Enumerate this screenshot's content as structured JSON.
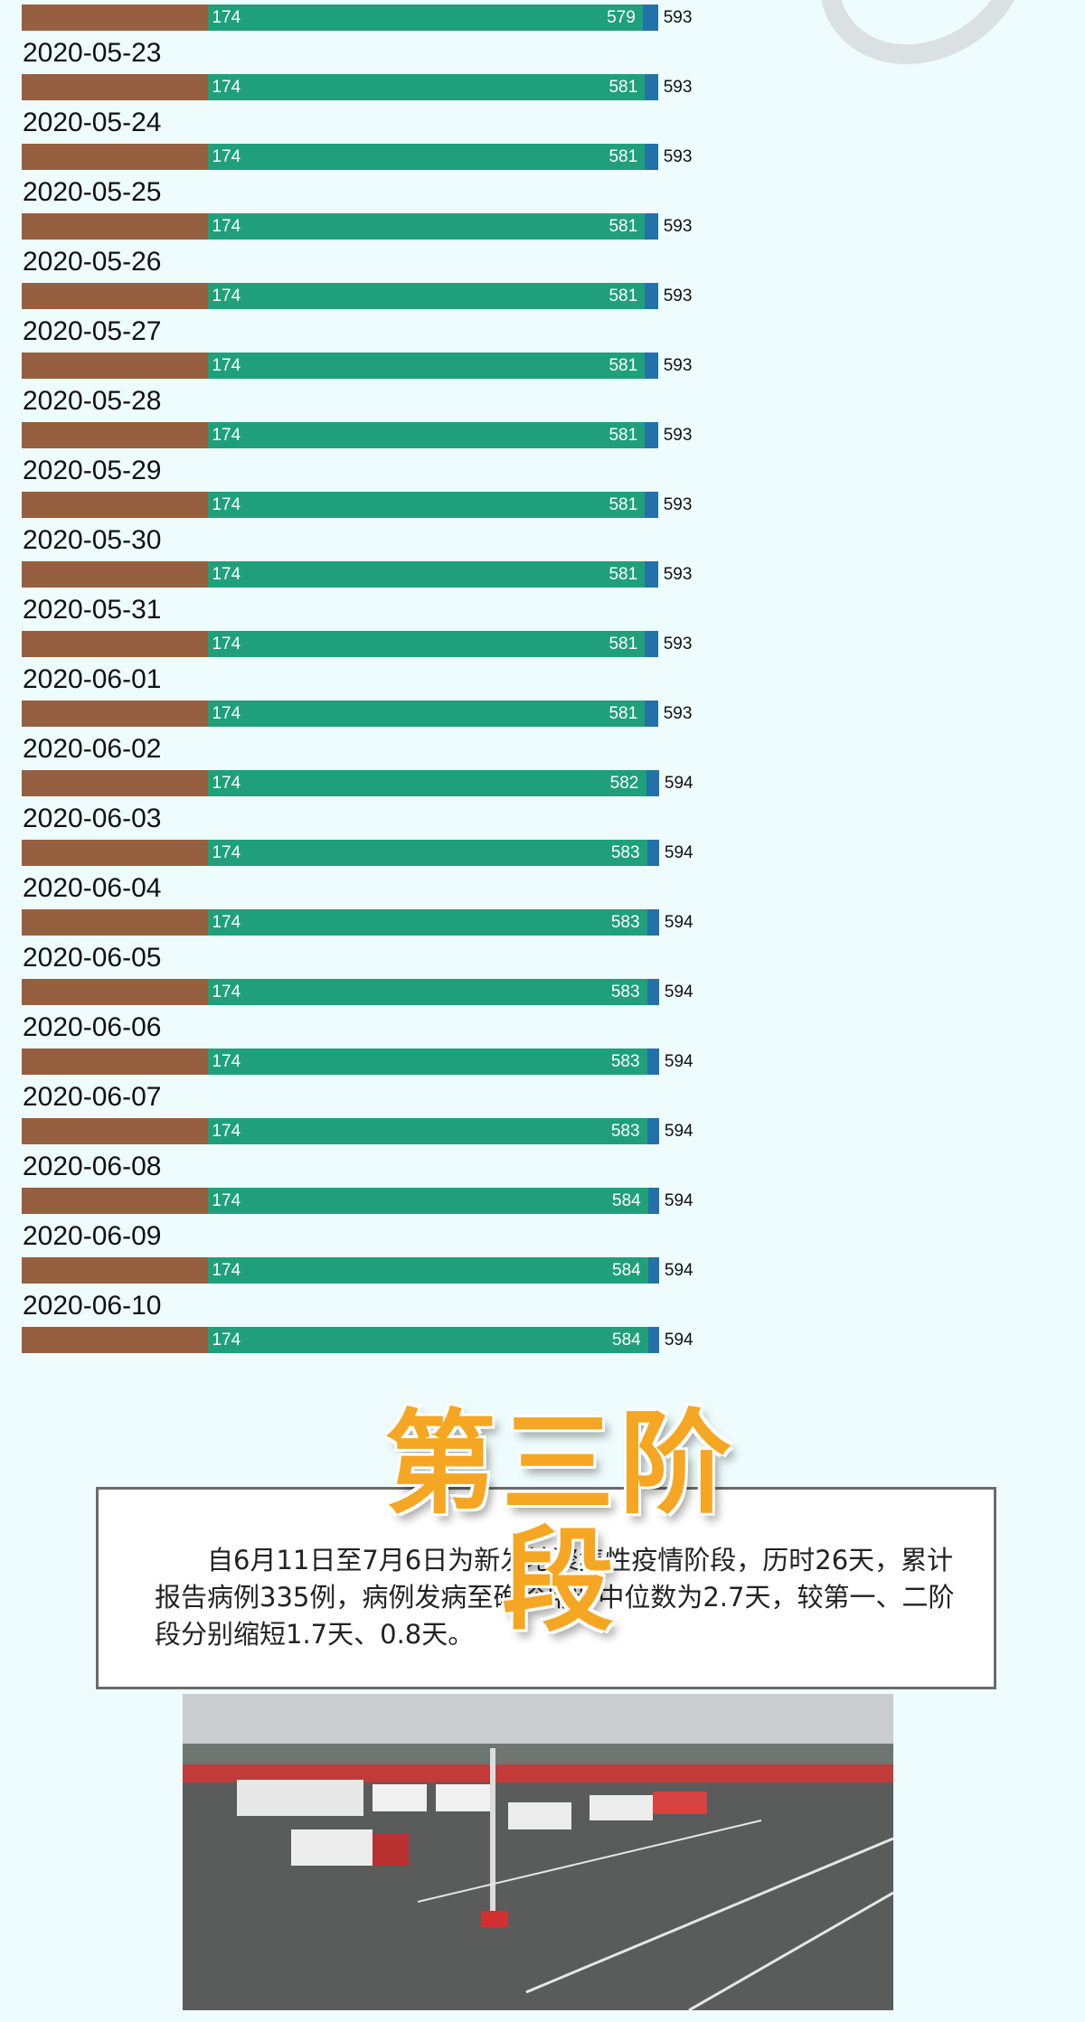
{
  "chart_data": {
    "type": "bar",
    "subtype": "stacked-horizontal",
    "series": [
      {
        "color": "#965f3f",
        "values": [
          174,
          174,
          174,
          174,
          174,
          174,
          174,
          174,
          174,
          174,
          174,
          174,
          174,
          174,
          174,
          174,
          174,
          174,
          174,
          174
        ]
      },
      {
        "color": "#1fa07a",
        "values": [
          579,
          581,
          581,
          581,
          581,
          581,
          581,
          581,
          581,
          581,
          581,
          582,
          583,
          583,
          583,
          583,
          583,
          584,
          584,
          584
        ]
      },
      {
        "color": "#2371a9",
        "values": [
          593,
          593,
          593,
          593,
          593,
          593,
          593,
          593,
          593,
          593,
          593,
          594,
          594,
          594,
          594,
          594,
          594,
          594,
          594,
          594
        ]
      }
    ],
    "rows": [
      {
        "date": "",
        "start": 174,
        "mid": 579,
        "total": 593
      },
      {
        "date": "2020-05-23",
        "start": 174,
        "mid": 581,
        "total": 593
      },
      {
        "date": "2020-05-24",
        "start": 174,
        "mid": 581,
        "total": 593
      },
      {
        "date": "2020-05-25",
        "start": 174,
        "mid": 581,
        "total": 593
      },
      {
        "date": "2020-05-26",
        "start": 174,
        "mid": 581,
        "total": 593
      },
      {
        "date": "2020-05-27",
        "start": 174,
        "mid": 581,
        "total": 593
      },
      {
        "date": "2020-05-28",
        "start": 174,
        "mid": 581,
        "total": 593
      },
      {
        "date": "2020-05-29",
        "start": 174,
        "mid": 581,
        "total": 593
      },
      {
        "date": "2020-05-30",
        "start": 174,
        "mid": 581,
        "total": 593
      },
      {
        "date": "2020-05-31",
        "start": 174,
        "mid": 581,
        "total": 593
      },
      {
        "date": "2020-06-01",
        "start": 174,
        "mid": 581,
        "total": 593
      },
      {
        "date": "2020-06-02",
        "start": 174,
        "mid": 582,
        "total": 594
      },
      {
        "date": "2020-06-03",
        "start": 174,
        "mid": 583,
        "total": 594
      },
      {
        "date": "2020-06-04",
        "start": 174,
        "mid": 583,
        "total": 594
      },
      {
        "date": "2020-06-05",
        "start": 174,
        "mid": 583,
        "total": 594
      },
      {
        "date": "2020-06-06",
        "start": 174,
        "mid": 583,
        "total": 594
      },
      {
        "date": "2020-06-07",
        "start": 174,
        "mid": 583,
        "total": 594
      },
      {
        "date": "2020-06-08",
        "start": 174,
        "mid": 584,
        "total": 594
      },
      {
        "date": "2020-06-09",
        "start": 174,
        "mid": 584,
        "total": 594
      },
      {
        "date": "2020-06-10",
        "start": 174,
        "mid": 584,
        "total": 594
      }
    ],
    "xlim": [
      0,
      600
    ]
  },
  "stage": {
    "title": "第三阶段",
    "body": "自6月11日至7月6日为新发地聚集性疫情阶段，历时26天，累计报告病例335例，病例发病至确诊用时中位数为2.7天，较第一、二阶段分别缩短1.7天、0.8天。"
  },
  "photo": {
    "subject": "market parking lot with trucks"
  }
}
